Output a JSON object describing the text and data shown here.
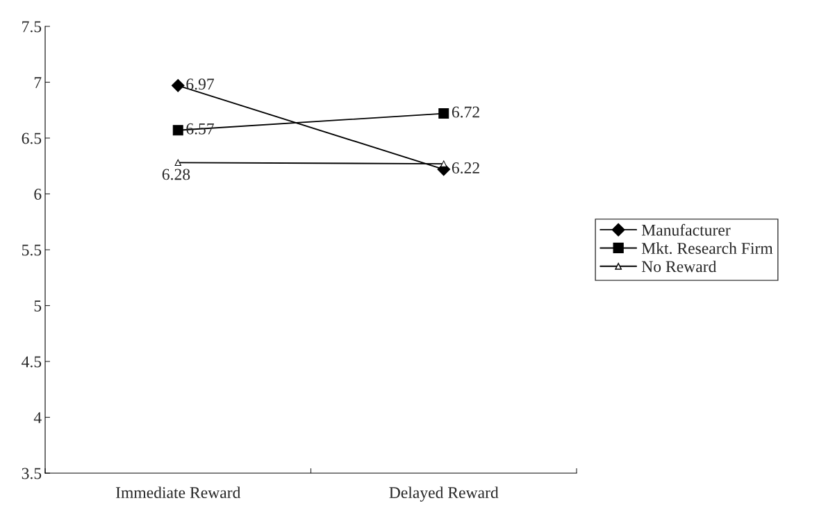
{
  "chart_data": {
    "type": "line",
    "categories": [
      "Immediate Reward",
      "Delayed Reward"
    ],
    "series": [
      {
        "name": "Manufacturer",
        "color": "#000000",
        "marker": "diamond",
        "values": [
          6.97,
          6.22
        ],
        "value_labels": [
          "6.97",
          "6.22"
        ]
      },
      {
        "name": "Mkt. Research Firm",
        "color": "#000000",
        "marker": "square",
        "values": [
          6.57,
          6.72
        ],
        "value_labels": [
          "6.57",
          "6.72"
        ]
      },
      {
        "name": "No Reward",
        "color": "#000000",
        "marker": "triangle",
        "values": [
          6.28,
          6.27
        ],
        "value_labels": [
          "6.28",
          null
        ]
      }
    ],
    "ylim": [
      3.5,
      7.5
    ],
    "yticks": [
      3.5,
      4,
      4.5,
      5,
      5.5,
      6,
      6.5,
      7,
      7.5
    ],
    "grid": false,
    "legend": "right",
    "line_style": "solid"
  }
}
